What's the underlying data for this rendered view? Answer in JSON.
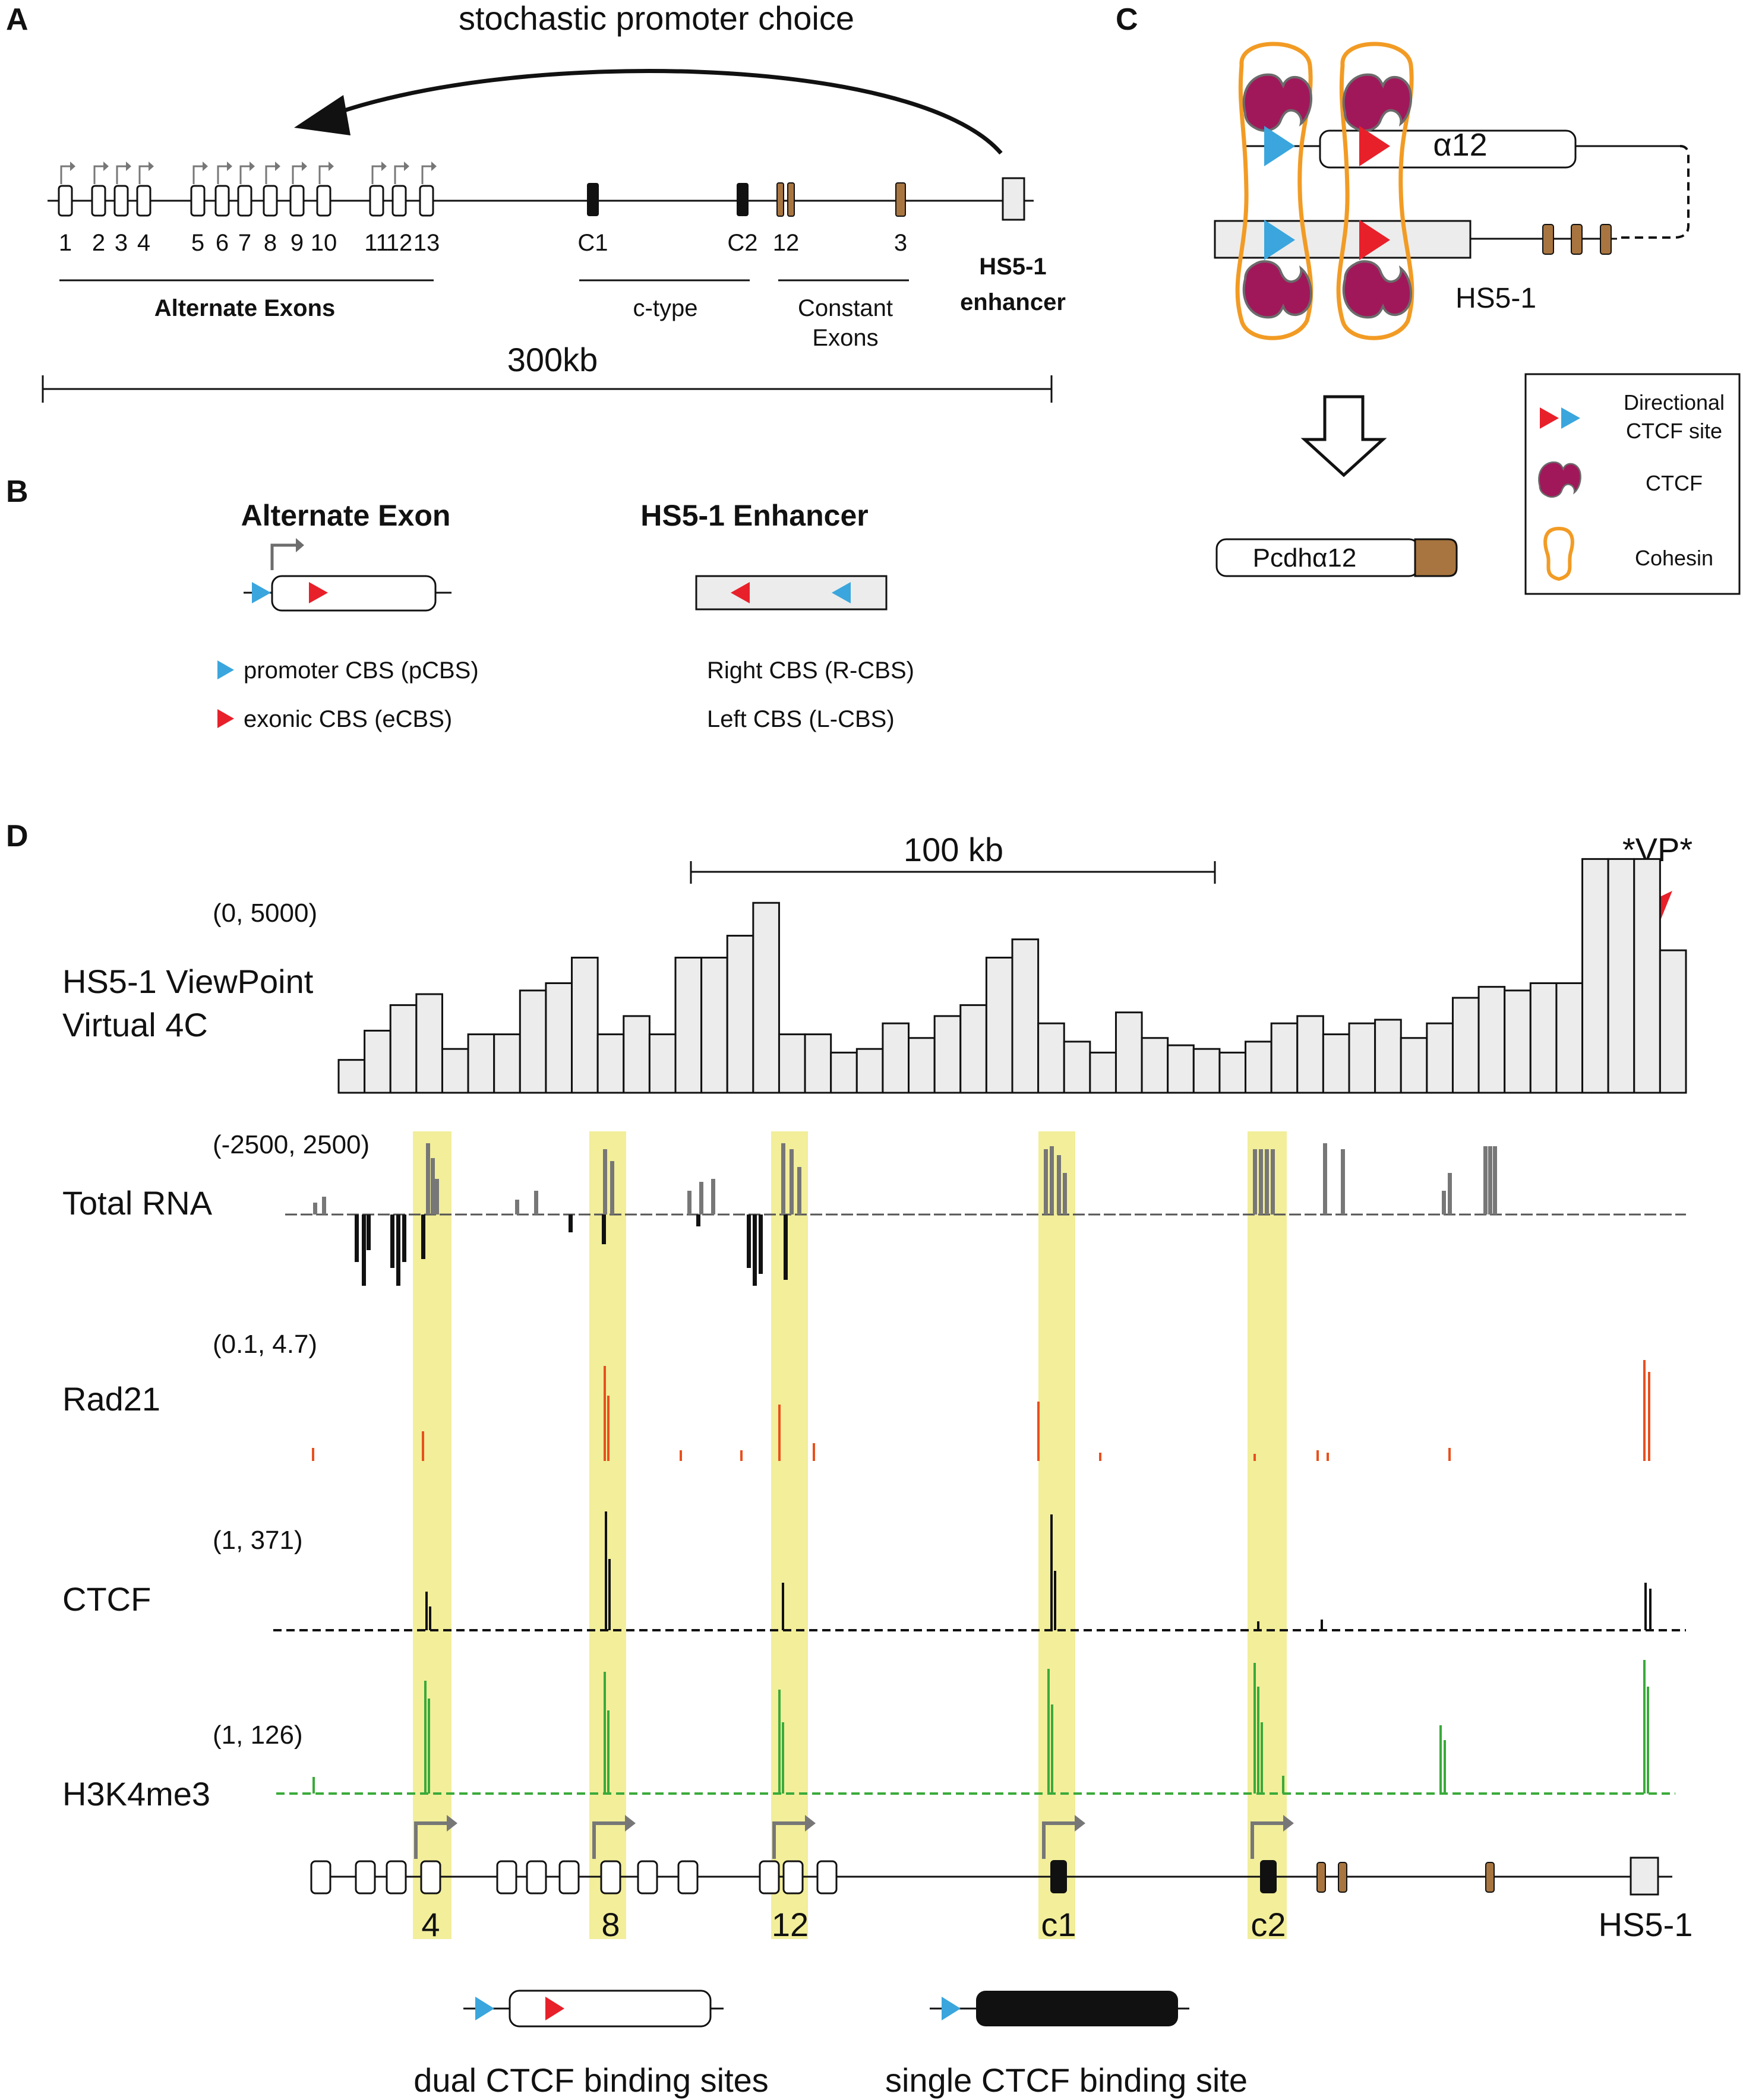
{
  "colors": {
    "ctcf_red": "#e8202a",
    "ctcf_blue": "#3aa6dd",
    "ctcf_protein": "#a0185a",
    "cohesin": "#f29b24",
    "constant_brown": "#a87540",
    "highlight": "#f2ee9a",
    "rad21": "#e8501e",
    "h3k4me3": "#3aaa3a",
    "rna": "#666666",
    "box_fill": "#ececec"
  },
  "panelA": {
    "label": "A",
    "arrow_text": "stochastic promoter choice",
    "exon_numbers": [
      "1",
      "2",
      "3",
      "4",
      "5",
      "6",
      "7",
      "8",
      "9",
      "10",
      "11",
      "12",
      "13"
    ],
    "ctype_exons": [
      "C1",
      "C2"
    ],
    "constant_exons": [
      "12",
      "3"
    ],
    "alternate_label": "Alternate Exons",
    "ctype_label": "c-type",
    "constant_label_1": "Constant",
    "constant_label_2": "Exons",
    "enhancer_label_1": "HS5-1",
    "enhancer_label_2": "enhancer",
    "scale_label": "300kb"
  },
  "panelB": {
    "label": "B",
    "alternate_title": "Alternate Exon",
    "enhancer_title": "HS5-1 Enhancer",
    "pcbs": "promoter CBS (pCBS)",
    "ecbs": "exonic CBS (eCBS)",
    "rcbs": "Right CBS (R-CBS)",
    "lcbs": "Left CBS (L-CBS)"
  },
  "panelC": {
    "label": "C",
    "alpha_label": "α12",
    "hs_label": "HS5-1",
    "product_label": "Pcdhα12",
    "legend": {
      "site_1": "Directional",
      "site_2": "CTCF site",
      "ctcf": "CTCF",
      "cohesin": "Cohesin"
    }
  },
  "panelD": {
    "label": "D",
    "scale_label": "100 kb",
    "vp_label": "*VP*",
    "tracks": {
      "v4c": {
        "range": "(0, 5000)",
        "name_1": "HS5-1 ViewPoint",
        "name_2": "Virtual 4C",
        "values": [
          0.09,
          0.17,
          0.24,
          0.27,
          0.12,
          0.16,
          0.16,
          0.28,
          0.3,
          0.37,
          0.16,
          0.21,
          0.16,
          0.37,
          0.37,
          0.43,
          0.52,
          0.16,
          0.16,
          0.11,
          0.12,
          0.19,
          0.15,
          0.21,
          0.24,
          0.37,
          0.42,
          0.19,
          0.14,
          0.11,
          0.22,
          0.15,
          0.13,
          0.12,
          0.11,
          0.14,
          0.19,
          0.21,
          0.16,
          0.19,
          0.2,
          0.15,
          0.19,
          0.26,
          0.29,
          0.28,
          0.3,
          0.3,
          0.64,
          0.64,
          0.64,
          0.39
        ]
      },
      "rna": {
        "range": "(-2500, 2500)",
        "name": "Total RNA"
      },
      "rad21": {
        "range": "(0.1, 4.7)",
        "name": "Rad21"
      },
      "ctcf": {
        "range": "(1, 371)",
        "name": "CTCF"
      },
      "h3k4me3": {
        "range": "(1, 126)",
        "name": "H3K4me3"
      }
    },
    "gene_labels": [
      "4",
      "8",
      "12",
      "c1",
      "c2"
    ],
    "hs_label": "HS5-1",
    "dual_label": "dual CTCF binding sites",
    "single_label": "single CTCF binding site"
  }
}
